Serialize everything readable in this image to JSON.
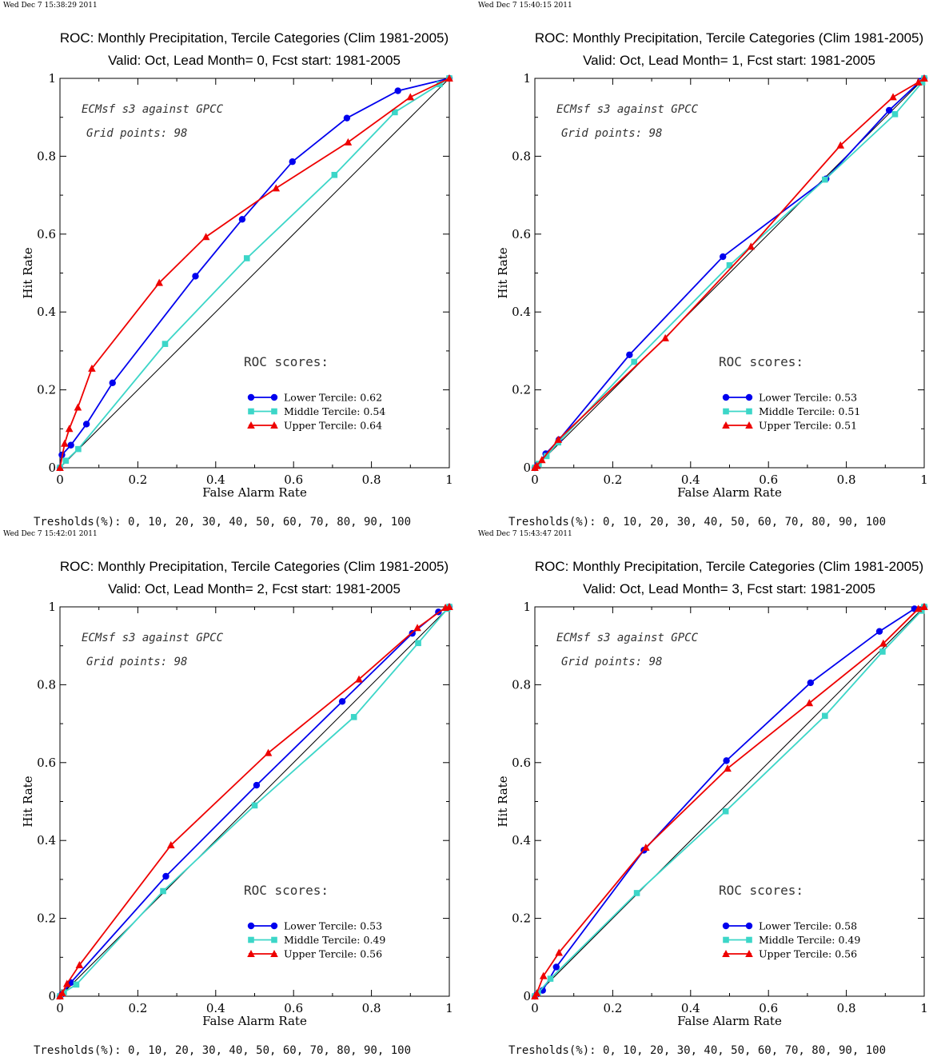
{
  "colors": {
    "lower": "#0000ee",
    "middle": "#3cd6c8",
    "upper": "#ee0000",
    "diagonal": "#000000"
  },
  "chart_data": [
    {
      "type": "line",
      "timestamp": "Wed Dec  7 15:38:29 2011",
      "title": "ROC: Monthly Precipitation, Tercile Categories (Clim 1981-2005)",
      "subtitle": "Valid: Oct, Lead Month= 0, Fcst start: 1981-2005",
      "xlabel": "False Alarm Rate",
      "ylabel": "Hit Rate",
      "xlim": [
        0,
        1
      ],
      "ylim": [
        0,
        1
      ],
      "xticks": [
        "0",
        "0.2",
        "0.4",
        "0.6",
        "0.8",
        "1"
      ],
      "yticks": [
        "0",
        "0.2",
        "0.4",
        "0.6",
        "0.8",
        "1"
      ],
      "annotation_source": "ECMsf s3 against GPCC",
      "annotation_grid": "Grid points:   98",
      "scores_header": "ROC scores:",
      "thresholds": "Tresholds(%): 0, 10, 20, 30, 40, 50, 60, 70, 80, 90, 100",
      "legend_position": "lower-right",
      "series": [
        {
          "name": "Lower Tercile: 0.62",
          "color_key": "lower",
          "marker": "circle",
          "x": [
            0,
            0.005,
            0.028,
            0.068,
            0.135,
            0.348,
            0.468,
            0.597,
            0.737,
            0.868,
            1.0
          ],
          "y": [
            0,
            0.033,
            0.058,
            0.112,
            0.218,
            0.492,
            0.638,
            0.786,
            0.898,
            0.968,
            1.0
          ]
        },
        {
          "name": "Middle Tercile: 0.54",
          "color_key": "middle",
          "marker": "square",
          "x": [
            0,
            0.015,
            0.047,
            0.27,
            0.48,
            0.705,
            0.86,
            0.975,
            1.0
          ],
          "y": [
            0,
            0.018,
            0.048,
            0.318,
            0.538,
            0.752,
            0.913,
            0.985,
            1.0
          ]
        },
        {
          "name": "Upper Tercile: 0.64",
          "color_key": "upper",
          "marker": "triangle",
          "x": [
            0,
            0.012,
            0.024,
            0.046,
            0.082,
            0.255,
            0.375,
            0.555,
            0.74,
            0.9,
            1.0
          ],
          "y": [
            0,
            0.062,
            0.1,
            0.155,
            0.255,
            0.475,
            0.593,
            0.718,
            0.836,
            0.952,
            1.0
          ]
        }
      ]
    },
    {
      "type": "line",
      "timestamp": "Wed Dec  7 15:40:15 2011",
      "title": "ROC: Monthly Precipitation, Tercile Categories (Clim 1981-2005)",
      "subtitle": "Valid: Oct, Lead Month= 1, Fcst start: 1981-2005",
      "xlabel": "False Alarm Rate",
      "ylabel": "Hit Rate",
      "xlim": [
        0,
        1
      ],
      "ylim": [
        0,
        1
      ],
      "xticks": [
        "0",
        "0.2",
        "0.4",
        "0.6",
        "0.8",
        "1"
      ],
      "yticks": [
        "0",
        "0.2",
        "0.4",
        "0.6",
        "0.8",
        "1"
      ],
      "annotation_source": "ECMsf s3 against GPCC",
      "annotation_grid": "Grid points:   98",
      "scores_header": "ROC scores:",
      "thresholds": "Tresholds(%): 0, 10, 20, 30, 40, 50, 60, 70, 80, 90, 100",
      "legend_position": "lower-right",
      "series": [
        {
          "name": "Lower Tercile: 0.53",
          "color_key": "lower",
          "marker": "circle",
          "x": [
            0,
            0.008,
            0.028,
            0.062,
            0.243,
            0.483,
            0.748,
            0.91,
            0.99,
            1.0
          ],
          "y": [
            0,
            0.008,
            0.036,
            0.072,
            0.29,
            0.542,
            0.742,
            0.918,
            0.993,
            1.0
          ]
        },
        {
          "name": "Middle Tercile: 0.51",
          "color_key": "middle",
          "marker": "square",
          "x": [
            0,
            0.01,
            0.03,
            0.06,
            0.255,
            0.5,
            0.745,
            0.925,
            0.995,
            1.0
          ],
          "y": [
            0,
            0.01,
            0.03,
            0.065,
            0.272,
            0.52,
            0.74,
            0.908,
            0.99,
            1.0
          ]
        },
        {
          "name": "Upper Tercile: 0.51",
          "color_key": "upper",
          "marker": "triangle",
          "x": [
            0,
            0.005,
            0.018,
            0.06,
            0.335,
            0.555,
            0.785,
            0.92,
            0.985,
            1.0
          ],
          "y": [
            0,
            0.005,
            0.02,
            0.072,
            0.333,
            0.568,
            0.828,
            0.952,
            0.99,
            1.0
          ]
        }
      ]
    },
    {
      "type": "line",
      "timestamp": "Wed Dec  7 15:42:01 2011",
      "title": "ROC: Monthly Precipitation, Tercile Categories (Clim 1981-2005)",
      "subtitle": "Valid: Oct, Lead Month= 2, Fcst start: 1981-2005",
      "xlabel": "False Alarm Rate",
      "ylabel": "Hit Rate",
      "xlim": [
        0,
        1
      ],
      "ylim": [
        0,
        1
      ],
      "xticks": [
        "0",
        "0.2",
        "0.4",
        "0.6",
        "0.8",
        "1"
      ],
      "yticks": [
        "0",
        "0.2",
        "0.4",
        "0.6",
        "0.8",
        "1"
      ],
      "annotation_source": "ECMsf s3 against GPCC",
      "annotation_grid": "Grid points:   98",
      "scores_header": "ROC scores:",
      "thresholds": "Tresholds(%): 0, 10, 20, 30, 40, 50, 60, 70, 80, 90, 100",
      "legend_position": "lower-right",
      "series": [
        {
          "name": "Lower Tercile: 0.53",
          "color_key": "lower",
          "marker": "circle",
          "x": [
            0,
            0.005,
            0.028,
            0.272,
            0.505,
            0.725,
            0.905,
            0.972,
            1.0
          ],
          "y": [
            0,
            0.005,
            0.035,
            0.308,
            0.542,
            0.757,
            0.932,
            0.987,
            1.0
          ]
        },
        {
          "name": "Middle Tercile: 0.49",
          "color_key": "middle",
          "marker": "square",
          "x": [
            0,
            0.01,
            0.042,
            0.265,
            0.5,
            0.755,
            0.92,
            0.995,
            1.0
          ],
          "y": [
            0,
            0.01,
            0.03,
            0.27,
            0.49,
            0.717,
            0.907,
            0.995,
            1.0
          ]
        },
        {
          "name": "Upper Tercile: 0.56",
          "color_key": "upper",
          "marker": "triangle",
          "x": [
            0,
            0.006,
            0.018,
            0.05,
            0.285,
            0.535,
            0.768,
            0.918,
            0.99,
            1.0
          ],
          "y": [
            0,
            0.008,
            0.032,
            0.08,
            0.388,
            0.625,
            0.814,
            0.946,
            0.998,
            1.0
          ]
        }
      ]
    },
    {
      "type": "line",
      "timestamp": "Wed Dec  7 15:43:47 2011",
      "title": "ROC: Monthly Precipitation, Tercile Categories (Clim 1981-2005)",
      "subtitle": "Valid: Oct, Lead Month= 3, Fcst start: 1981-2005",
      "xlabel": "False Alarm Rate",
      "ylabel": "Hit Rate",
      "xlim": [
        0,
        1
      ],
      "ylim": [
        0,
        1
      ],
      "xticks": [
        "0",
        "0.2",
        "0.4",
        "0.6",
        "0.8",
        "1"
      ],
      "yticks": [
        "0",
        "0.2",
        "0.4",
        "0.6",
        "0.8",
        "1"
      ],
      "annotation_source": "ECMsf s3 against GPCC",
      "annotation_grid": "Grid points:   98",
      "scores_header": "ROC scores:",
      "thresholds": "Tresholds(%): 0, 10, 20, 30, 40, 50, 60, 70, 80, 90, 100",
      "legend_position": "lower-right",
      "series": [
        {
          "name": "Lower Tercile: 0.58",
          "color_key": "lower",
          "marker": "circle",
          "x": [
            0,
            0.005,
            0.02,
            0.055,
            0.28,
            0.492,
            0.708,
            0.885,
            0.975,
            1.0
          ],
          "y": [
            0,
            0.005,
            0.015,
            0.075,
            0.375,
            0.605,
            0.805,
            0.937,
            0.995,
            1.0
          ]
        },
        {
          "name": "Middle Tercile: 0.49",
          "color_key": "middle",
          "marker": "square",
          "x": [
            0,
            0.008,
            0.04,
            0.262,
            0.49,
            0.745,
            0.893,
            0.993,
            1.0
          ],
          "y": [
            0,
            0.008,
            0.045,
            0.265,
            0.475,
            0.72,
            0.885,
            0.99,
            1.0
          ]
        },
        {
          "name": "Upper Tercile: 0.56",
          "color_key": "upper",
          "marker": "triangle",
          "x": [
            0,
            0.005,
            0.022,
            0.062,
            0.285,
            0.495,
            0.705,
            0.895,
            0.985,
            1.0
          ],
          "y": [
            0,
            0.008,
            0.052,
            0.112,
            0.382,
            0.585,
            0.753,
            0.906,
            0.995,
            1.0
          ]
        }
      ]
    }
  ]
}
